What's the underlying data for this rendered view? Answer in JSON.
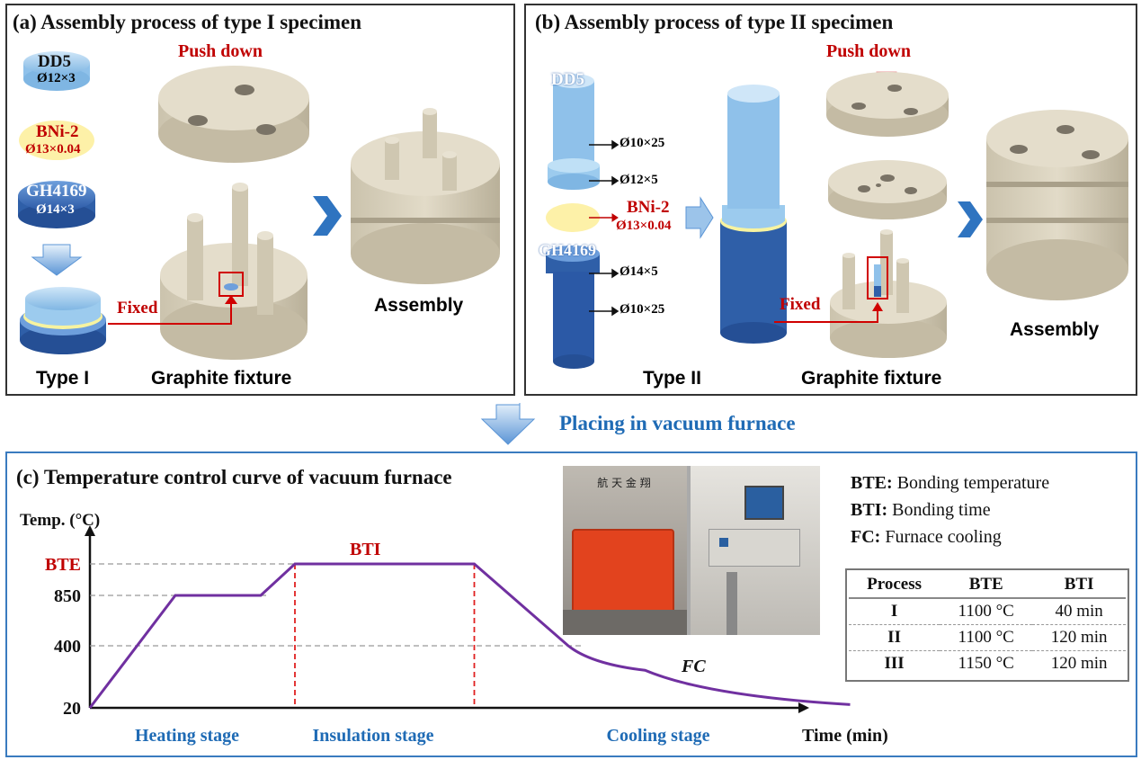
{
  "panel_a": {
    "title": "(a) Assembly process of type I specimen",
    "dd5": "DD5",
    "dd5_size": "Ø12×3",
    "bni2": "BNi-2",
    "bni2_size": "Ø13×0.04",
    "gh": "GH4169",
    "gh_size": "Ø14×3",
    "push": "Push down",
    "fixed": "Fixed",
    "type": "Type I",
    "fixture": "Graphite fixture",
    "assembly": "Assembly"
  },
  "panel_b": {
    "title": "(b) Assembly process of type II specimen",
    "dd5": "DD5",
    "gh": "GH4169",
    "bni2": "BNi-2",
    "bni2_size": "Ø13×0.04",
    "dim1": "Ø10×25",
    "dim2": "Ø12×5",
    "dim3": "Ø14×5",
    "dim4": "Ø10×25",
    "push": "Push down",
    "fixed": "Fixed",
    "type": "Type II",
    "fixture": "Graphite fixture",
    "assembly": "Assembly"
  },
  "transfer": {
    "label": "Placing in vacuum furnace"
  },
  "panel_c": {
    "title": "(c) Temperature control curve of vacuum furnace",
    "legend": [
      {
        "key": "BTE:",
        "text": " Bonding temperature"
      },
      {
        "key": "BTI:",
        "text": " Bonding time"
      },
      {
        "key": "FC:",
        "text": " Furnace cooling"
      }
    ],
    "furnace_sign": "航 天 金 翔",
    "table": {
      "headers": [
        "Process",
        "BTE",
        "BTI"
      ],
      "rows": [
        [
          "I",
          "1100 °C",
          "40 min"
        ],
        [
          "II",
          "1100 °C",
          "120 min"
        ],
        [
          "III",
          "1150 °C",
          "120 min"
        ]
      ]
    }
  },
  "chart_data": {
    "type": "line",
    "title": "Temperature control curve of vacuum furnace",
    "ylabel": "Temp. (°C)",
    "xlabel": "Time (min)",
    "ytick_labels": [
      "20",
      "400",
      "850",
      "BTE"
    ],
    "series": [
      {
        "name": "Temperature",
        "points": [
          [
            0,
            20
          ],
          [
            1,
            850
          ],
          [
            2,
            850
          ],
          [
            2.4,
            1100
          ],
          [
            4.5,
            1100
          ],
          [
            5.6,
            400
          ],
          [
            6.5,
            250
          ],
          [
            8.9,
            40
          ]
        ]
      }
    ],
    "annotations": {
      "bti": "BTI",
      "fc": "FC"
    },
    "stages": [
      "Heating stage",
      "Insulation stage",
      "Cooling stage"
    ]
  },
  "colors": {
    "accent_red": "#c00000",
    "stage_blue": "#1f6bb5",
    "curve": "#7030a0",
    "steel_blue": "#2f5fa8",
    "light_blue": "#8fc1ea",
    "fixture": "#d8d0bc"
  }
}
